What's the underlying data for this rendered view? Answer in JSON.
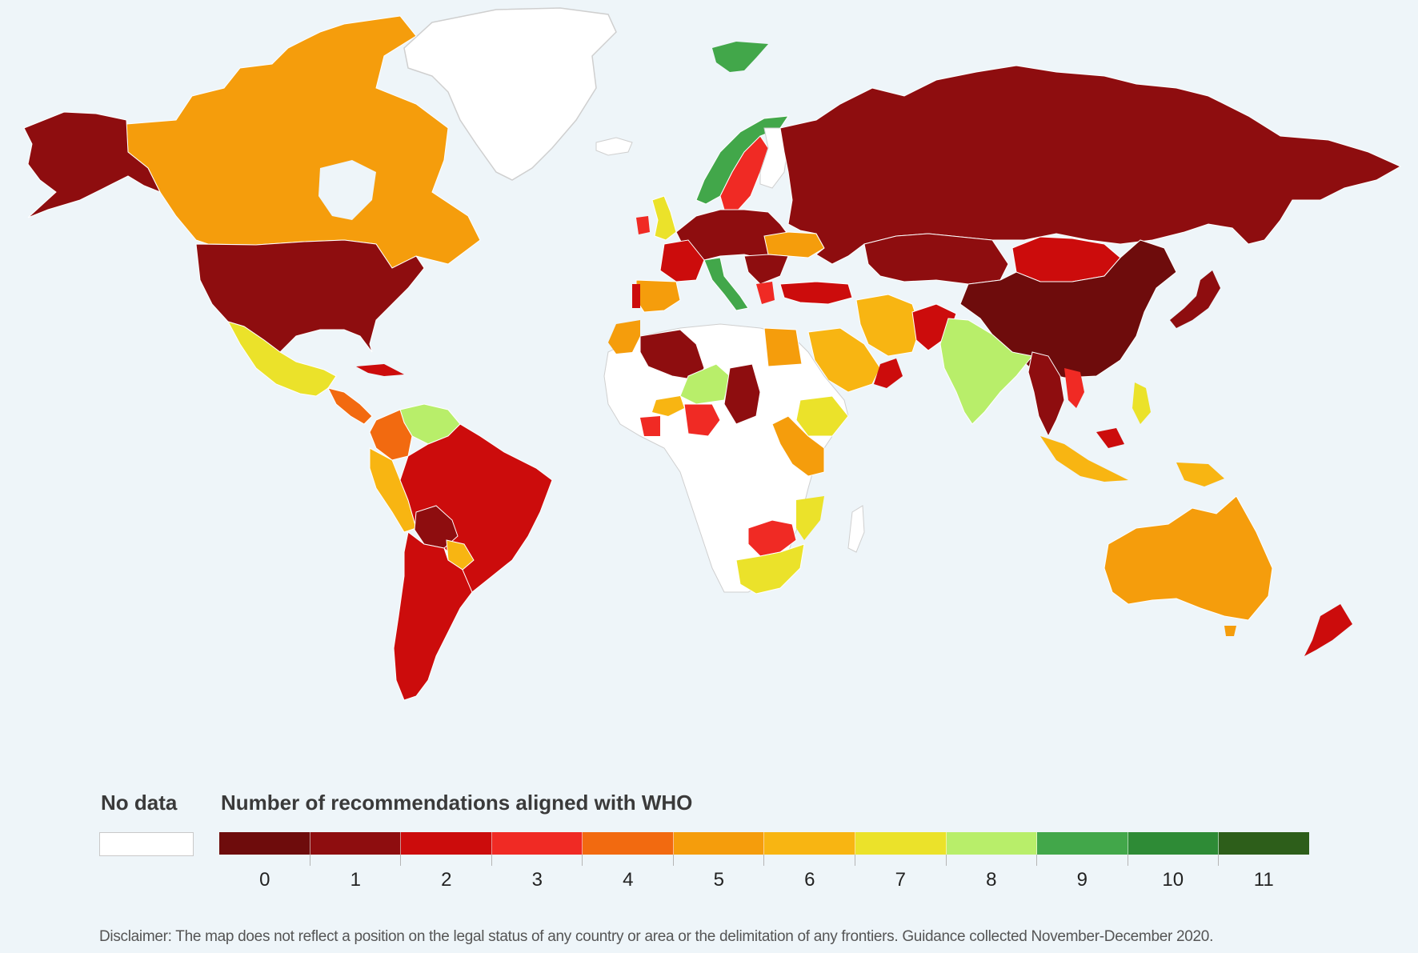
{
  "legend": {
    "no_data_label": "No data",
    "title": "Number of recommendations aligned with WHO",
    "categories": [
      "0",
      "1",
      "2",
      "3",
      "4",
      "5",
      "6",
      "7",
      "8",
      "9",
      "10",
      "11"
    ],
    "colors": [
      "#6e0c0c",
      "#8e0d0f",
      "#cc0c0c",
      "#f02a24",
      "#f26a10",
      "#f59d0c",
      "#f8b512",
      "#ebe22a",
      "#b8ee6a",
      "#42a74a",
      "#2e8b36",
      "#2d5e1a"
    ],
    "no_data_color": "#ffffff"
  },
  "disclaimer": "Disclaimer: The map does not reflect a position on the legal status of any country or area or the delimitation of any frontiers. Guidance collected November-December 2020.",
  "map": {
    "ocean_color": "#eef5f9",
    "regions": [
      {
        "name": "Alaska",
        "value": 1
      },
      {
        "name": "Canada",
        "value": 5
      },
      {
        "name": "Greenland",
        "value": null
      },
      {
        "name": "United States",
        "value": 1
      },
      {
        "name": "Mexico",
        "value": 7
      },
      {
        "name": "Brazil",
        "value": 2
      },
      {
        "name": "Argentina",
        "value": 2
      },
      {
        "name": "Bolivia",
        "value": 1
      },
      {
        "name": "Colombia",
        "value": 4
      },
      {
        "name": "Venezuela",
        "value": 8
      },
      {
        "name": "Svalbard",
        "value": 9
      },
      {
        "name": "Norway",
        "value": 9
      },
      {
        "name": "Sweden",
        "value": 3
      },
      {
        "name": "Russia",
        "value": 1
      },
      {
        "name": "China",
        "value": 0
      },
      {
        "name": "Mongolia",
        "value": 2
      },
      {
        "name": "India",
        "value": 8
      },
      {
        "name": "Australia",
        "value": 5
      },
      {
        "name": "New Zealand",
        "value": 2
      },
      {
        "name": "Algeria",
        "value": 1
      },
      {
        "name": "Egypt",
        "value": 5
      },
      {
        "name": "Saudi Arabia",
        "value": 6
      },
      {
        "name": "Iran",
        "value": 6
      },
      {
        "name": "Nigeria",
        "value": 3
      },
      {
        "name": "Niger",
        "value": 8
      },
      {
        "name": "Chad",
        "value": 1
      },
      {
        "name": "Ethiopia",
        "value": 7
      },
      {
        "name": "Kenya",
        "value": 5
      },
      {
        "name": "South Africa",
        "value": 7
      },
      {
        "name": "Indonesia",
        "value": 6
      },
      {
        "name": "Japan",
        "value": 1
      },
      {
        "name": "Italy",
        "value": 9
      },
      {
        "name": "Spain",
        "value": 5
      },
      {
        "name": "United Kingdom",
        "value": 7
      },
      {
        "name": "Turkey",
        "value": 2
      }
    ]
  }
}
